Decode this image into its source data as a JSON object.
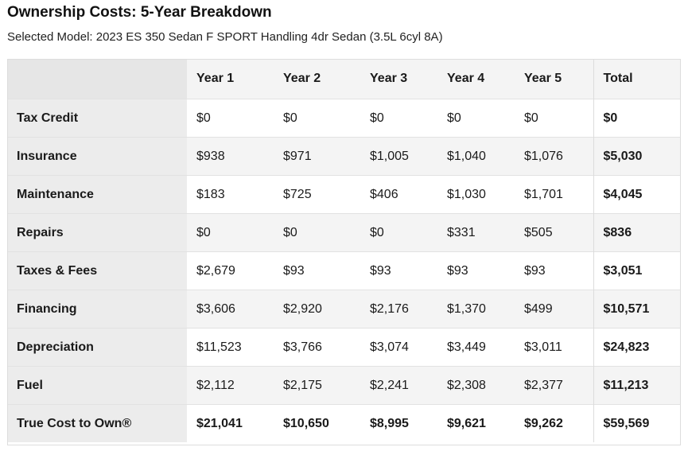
{
  "header": {
    "title": "Ownership Costs: 5-Year Breakdown",
    "subtitle": "Selected Model: 2023 ES 350 Sedan F SPORT Handling 4dr Sedan (3.5L 6cyl 8A)"
  },
  "table": {
    "columns": [
      "",
      "Year 1",
      "Year 2",
      "Year 3",
      "Year 4",
      "Year 5",
      "Total"
    ],
    "rows": [
      {
        "label": "Tax Credit",
        "values": [
          "$0",
          "$0",
          "$0",
          "$0",
          "$0"
        ],
        "total": "$0"
      },
      {
        "label": "Insurance",
        "values": [
          "$938",
          "$971",
          "$1,005",
          "$1,040",
          "$1,076"
        ],
        "total": "$5,030"
      },
      {
        "label": "Maintenance",
        "values": [
          "$183",
          "$725",
          "$406",
          "$1,030",
          "$1,701"
        ],
        "total": "$4,045"
      },
      {
        "label": "Repairs",
        "values": [
          "$0",
          "$0",
          "$0",
          "$331",
          "$505"
        ],
        "total": "$836"
      },
      {
        "label": "Taxes & Fees",
        "values": [
          "$2,679",
          "$93",
          "$93",
          "$93",
          "$93"
        ],
        "total": "$3,051"
      },
      {
        "label": "Financing",
        "values": [
          "$3,606",
          "$2,920",
          "$2,176",
          "$1,370",
          "$499"
        ],
        "total": "$10,571"
      },
      {
        "label": "Depreciation",
        "values": [
          "$11,523",
          "$3,766",
          "$3,074",
          "$3,449",
          "$3,011"
        ],
        "total": "$24,823"
      },
      {
        "label": "Fuel",
        "values": [
          "$2,112",
          "$2,175",
          "$2,241",
          "$2,308",
          "$2,377"
        ],
        "total": "$11,213"
      },
      {
        "label": "True Cost to Own®",
        "values": [
          "$21,041",
          "$10,650",
          "$8,995",
          "$9,621",
          "$9,262"
        ],
        "total": "$59,569"
      }
    ]
  }
}
